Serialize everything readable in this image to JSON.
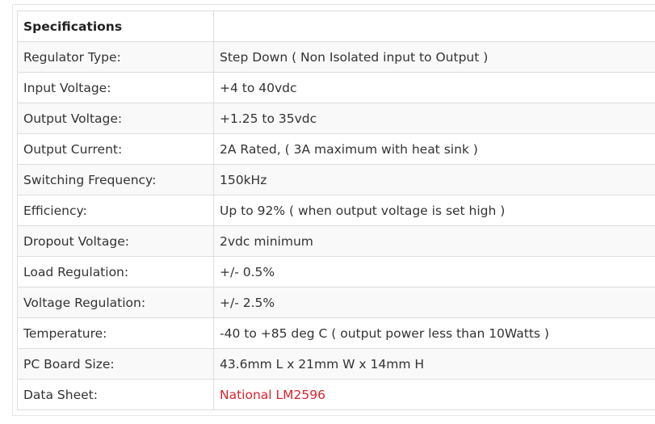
{
  "table": {
    "header": {
      "title": "Specifications",
      "blank": ""
    },
    "rows": [
      {
        "label": "Regulator Type:",
        "value": "Step Down ( Non Isolated input to Output )"
      },
      {
        "label": "Input Voltage:",
        "value": "+4 to 40vdc"
      },
      {
        "label": "Output Voltage:",
        "value": "+1.25 to 35vdc"
      },
      {
        "label": "Output Current:",
        "value": "2A Rated, ( 3A maximum with heat sink )"
      },
      {
        "label": "Switching Frequency:",
        "value": "150kHz"
      },
      {
        "label": "Efficiency:",
        "value": "Up to 92% ( when output voltage is set high )"
      },
      {
        "label": "Dropout Voltage:",
        "value": "2vdc minimum"
      },
      {
        "label": "Load Regulation:",
        "value": "+/- 0.5%"
      },
      {
        "label": "Voltage Regulation:",
        "value": "+/- 2.5%"
      },
      {
        "label": "Temperature:",
        "value": "-40 to +85 deg C ( output power less than 10Watts )"
      },
      {
        "label": "PC Board Size:",
        "value": "43.6mm L x 21mm W x 14mm H"
      },
      {
        "label": "Data Sheet:",
        "value": "National LM2596"
      }
    ]
  },
  "colors": {
    "link": "#d9232e",
    "border": "#dddddd",
    "row_stripe": "#f9f9f9"
  }
}
